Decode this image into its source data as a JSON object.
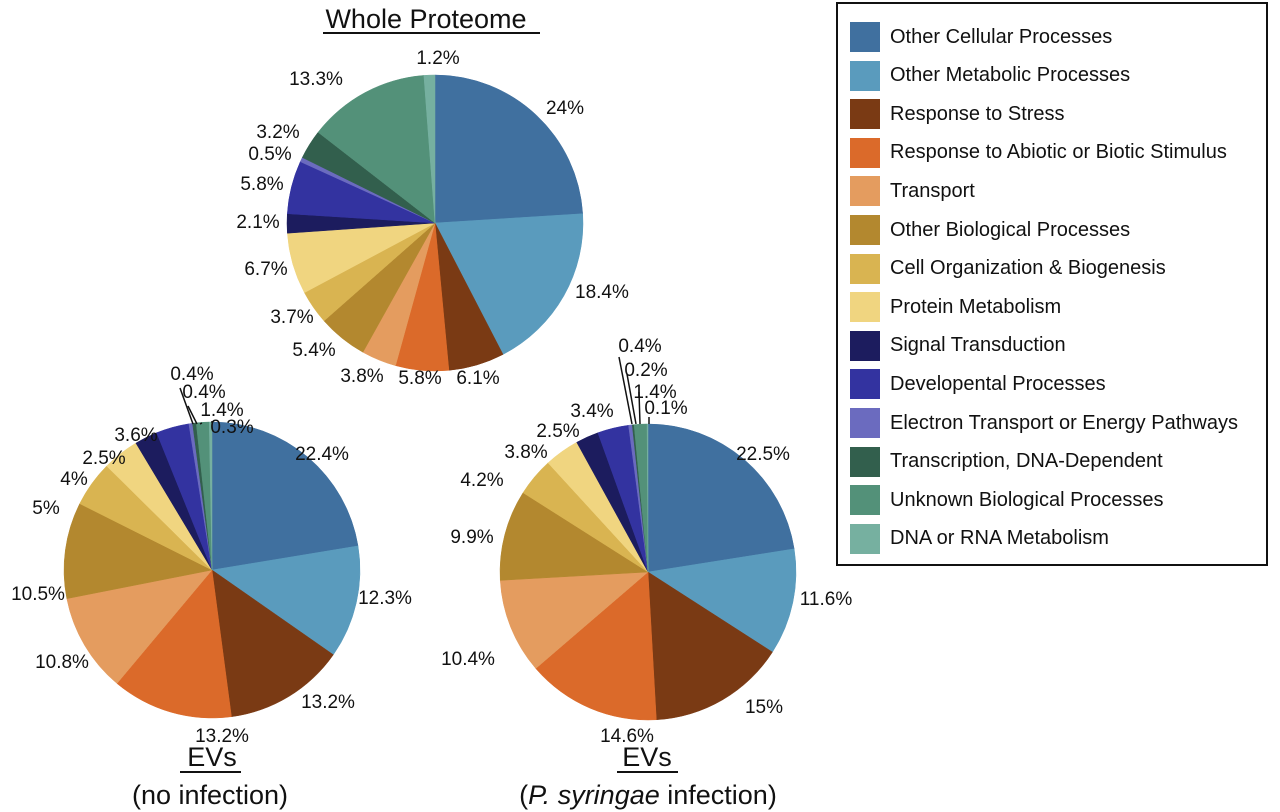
{
  "legend": {
    "items": [
      {
        "label": "Other Cellular Processes",
        "color": "#40709f"
      },
      {
        "label": "Other Metabolic Processes",
        "color": "#5a9bbd"
      },
      {
        "label": "Response to Stress",
        "color": "#7a3a14"
      },
      {
        "label": "Response to Abiotic or Biotic Stimulus",
        "color": "#db6a2a"
      },
      {
        "label": "Transport",
        "color": "#e49c5f"
      },
      {
        "label": "Other Biological Processes",
        "color": "#b3882f"
      },
      {
        "label": "Cell Organization & Biogenesis",
        "color": "#d9b451"
      },
      {
        "label": "Protein Metabolism",
        "color": "#f0d580"
      },
      {
        "label": "Signal Transduction",
        "color": "#1c1c5e"
      },
      {
        "label": "Developental Processes",
        "color": "#3333a0"
      },
      {
        "label": "Electron Transport or Energy Pathways",
        "color": "#6b6bbf"
      },
      {
        "label": "Transcription, DNA-Dependent",
        "color": "#325f4d"
      },
      {
        "label": "Unknown Biological Processes",
        "color": "#539179"
      },
      {
        "label": "DNA or RNA Metabolism",
        "color": "#76b0a0"
      }
    ]
  },
  "chart_data": [
    {
      "type": "pie",
      "title": "Whole Proteome",
      "subtitle": "",
      "categories": [
        "Other Cellular Processes",
        "Other Metabolic Processes",
        "Response to Stress",
        "Response to Abiotic or Biotic Stimulus",
        "Transport",
        "Other Biological Processes",
        "Cell Organization & Biogenesis",
        "Protein Metabolism",
        "Signal Transduction",
        "Developental Processes",
        "Electron Transport or Energy Pathways",
        "Transcription, DNA-Dependent",
        "Unknown Biological Processes",
        "DNA or RNA Metabolism"
      ],
      "values": [
        24,
        18.4,
        6.1,
        5.8,
        3.8,
        5.4,
        3.7,
        6.7,
        2.1,
        5.8,
        0.5,
        3.2,
        13.3,
        1.2
      ],
      "labels": [
        "24%",
        "18.4%",
        "6.1%",
        "5.8%",
        "3.8%",
        "5.4%",
        "3.7%",
        "6.7%",
        "2.1%",
        "5.8%",
        "0.5%",
        "3.2%",
        "13.3%",
        "1.2%"
      ]
    },
    {
      "type": "pie",
      "title": "EVs",
      "subtitle": "(no infection)",
      "categories": [
        "Other Cellular Processes",
        "Other Metabolic Processes",
        "Response to Stress",
        "Response to Abiotic or Biotic Stimulus",
        "Transport",
        "Other Biological Processes",
        "Cell Organization & Biogenesis",
        "Protein Metabolism",
        "Signal Transduction",
        "Developental Processes",
        "Electron Transport or Energy Pathways",
        "Transcription, DNA-Dependent",
        "Unknown Biological Processes",
        "DNA or RNA Metabolism"
      ],
      "values": [
        22.4,
        12.3,
        13.2,
        13.2,
        10.8,
        10.5,
        5,
        4,
        2.5,
        3.6,
        0.4,
        0.4,
        1.4,
        0.3
      ],
      "labels": [
        "22.4%",
        "12.3%",
        "13.2%",
        "13.2%",
        "10.8%",
        "10.5%",
        "5%",
        "4%",
        "2.5%",
        "3.6%",
        "0.4%",
        "0.4%",
        "1.4%",
        "0.3%"
      ]
    },
    {
      "type": "pie",
      "title": "EVs",
      "subtitle_italic": "P. syringae",
      "subtitle_rest": " infection",
      "categories": [
        "Other Cellular Processes",
        "Other Metabolic Processes",
        "Response to Stress",
        "Response to Abiotic or Biotic Stimulus",
        "Transport",
        "Other Biological Processes",
        "Cell Organization & Biogenesis",
        "Protein Metabolism",
        "Signal Transduction",
        "Developental Processes",
        "Electron Transport or Energy Pathways",
        "Transcription, DNA-Dependent",
        "Unknown Biological Processes",
        "DNA or RNA Metabolism"
      ],
      "values": [
        22.5,
        11.6,
        15,
        14.6,
        10.4,
        9.9,
        4.2,
        3.8,
        2.5,
        3.4,
        0.4,
        0.2,
        1.4,
        0.1
      ],
      "labels": [
        "22.5%",
        "11.6%",
        "15%",
        "14.6%",
        "10.4%",
        "9.9%",
        "4.2%",
        "3.8%",
        "2.5%",
        "3.4%",
        "0.4%",
        "0.2%",
        "1.4%",
        "0.1%"
      ]
    }
  ]
}
